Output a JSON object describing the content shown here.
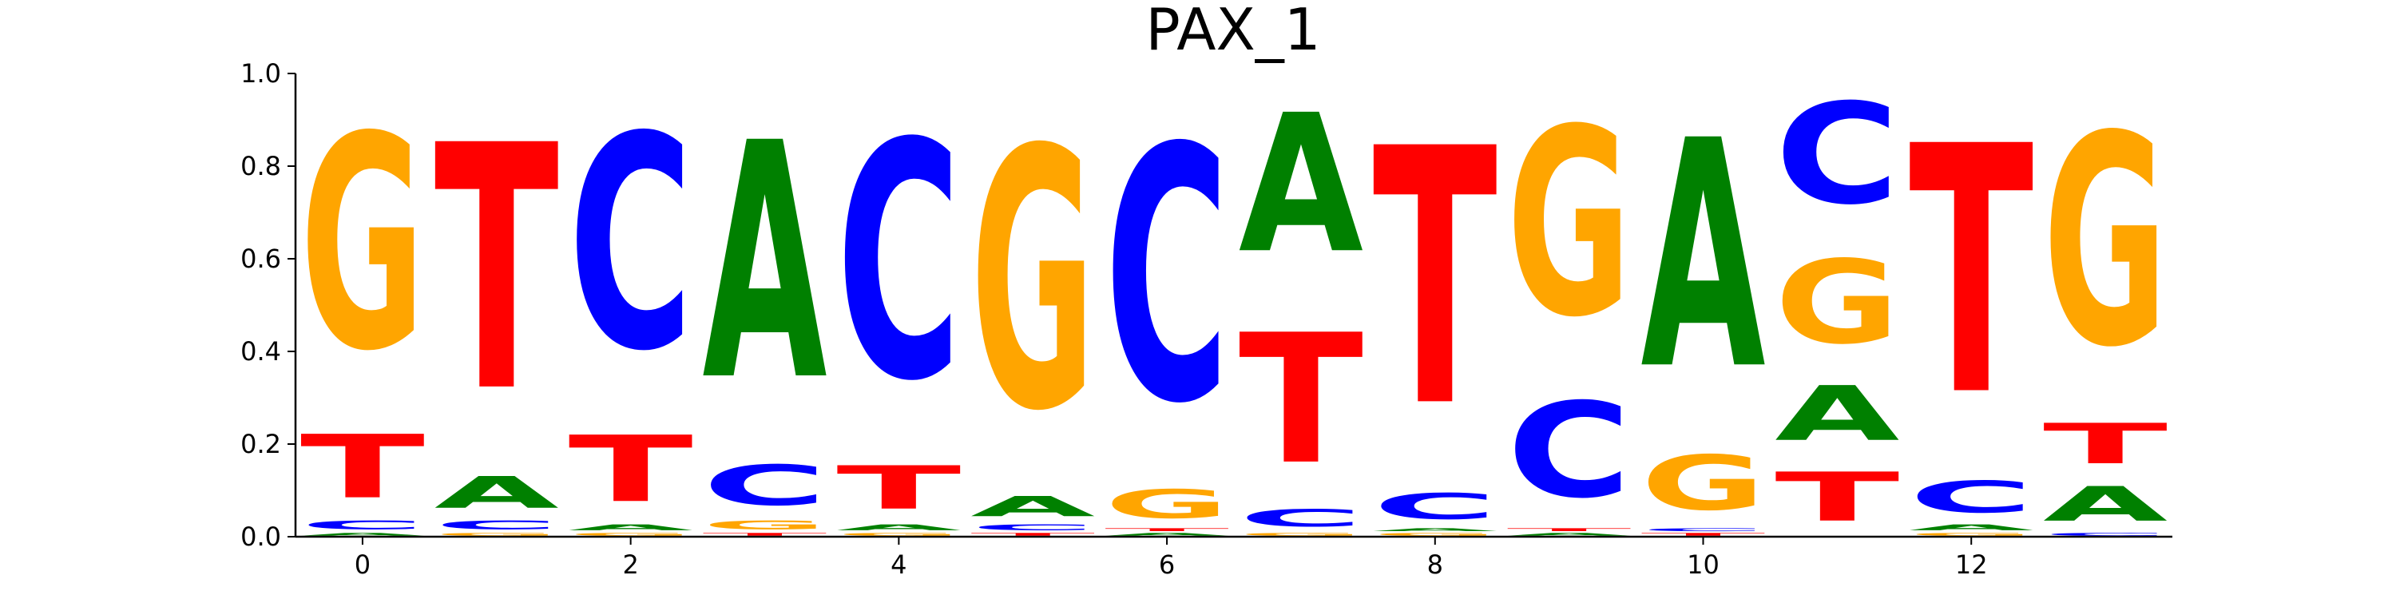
{
  "chart_data": {
    "type": "sequence-logo",
    "title": "PAX_1",
    "xlabel": "",
    "ylabel": "",
    "ylim": [
      0.0,
      1.0
    ],
    "xlim": [
      -0.5,
      13.5
    ],
    "x_ticks": [
      0,
      2,
      4,
      6,
      8,
      10,
      12
    ],
    "y_ticks": [
      0.0,
      0.2,
      0.4,
      0.6,
      0.8,
      1.0
    ],
    "x_tick_labels": [
      "0",
      "2",
      "4",
      "6",
      "8",
      "10",
      "12"
    ],
    "y_tick_labels": [
      "0.0",
      "0.2",
      "0.4",
      "0.6",
      "0.8",
      "1.0"
    ],
    "grid": false,
    "colors": {
      "A": "#008000",
      "C": "#0000ff",
      "G": "#ffa500",
      "T": "#ff0000"
    },
    "positions": [
      {
        "x": 0,
        "stack": [
          {
            "letter": "A",
            "value": 0.01
          },
          {
            "letter": "C",
            "value": 0.03
          },
          {
            "letter": "T",
            "value": 0.22
          },
          {
            "letter": "G",
            "value": 0.74
          }
        ]
      },
      {
        "x": 1,
        "stack": [
          {
            "letter": "G",
            "value": 0.01
          },
          {
            "letter": "C",
            "value": 0.03
          },
          {
            "letter": "A",
            "value": 0.11
          },
          {
            "letter": "T",
            "value": 0.85
          }
        ]
      },
      {
        "x": 2,
        "stack": [
          {
            "letter": "G",
            "value": 0.01
          },
          {
            "letter": "A",
            "value": 0.02
          },
          {
            "letter": "T",
            "value": 0.23
          },
          {
            "letter": "C",
            "value": 0.74
          }
        ]
      },
      {
        "x": 3,
        "stack": [
          {
            "letter": "T",
            "value": 0.01
          },
          {
            "letter": "G",
            "value": 0.03
          },
          {
            "letter": "C",
            "value": 0.14
          },
          {
            "letter": "A",
            "value": 0.82
          }
        ]
      },
      {
        "x": 4,
        "stack": [
          {
            "letter": "G",
            "value": 0.01
          },
          {
            "letter": "A",
            "value": 0.02
          },
          {
            "letter": "T",
            "value": 0.15
          },
          {
            "letter": "C",
            "value": 0.82
          }
        ]
      },
      {
        "x": 5,
        "stack": [
          {
            "letter": "T",
            "value": 0.01
          },
          {
            "letter": "C",
            "value": 0.02
          },
          {
            "letter": "A",
            "value": 0.07
          },
          {
            "letter": "G",
            "value": 0.9
          }
        ]
      },
      {
        "x": 6,
        "stack": [
          {
            "letter": "A",
            "value": 0.01
          },
          {
            "letter": "T",
            "value": 0.01
          },
          {
            "letter": "G",
            "value": 0.1
          },
          {
            "letter": "C",
            "value": 0.88
          }
        ]
      },
      {
        "x": 7,
        "stack": [
          {
            "letter": "G",
            "value": 0.01
          },
          {
            "letter": "C",
            "value": 0.06
          },
          {
            "letter": "T",
            "value": 0.45
          },
          {
            "letter": "A",
            "value": 0.48
          }
        ]
      },
      {
        "x": 8,
        "stack": [
          {
            "letter": "G",
            "value": 0.01
          },
          {
            "letter": "A",
            "value": 0.01
          },
          {
            "letter": "C",
            "value": 0.09
          },
          {
            "letter": "T",
            "value": 0.89
          }
        ]
      },
      {
        "x": 9,
        "stack": [
          {
            "letter": "A",
            "value": 0.01
          },
          {
            "letter": "T",
            "value": 0.01
          },
          {
            "letter": "C",
            "value": 0.33
          },
          {
            "letter": "G",
            "value": 0.65
          }
        ]
      },
      {
        "x": 10,
        "stack": [
          {
            "letter": "T",
            "value": 0.01
          },
          {
            "letter": "C",
            "value": 0.01
          },
          {
            "letter": "G",
            "value": 0.19
          },
          {
            "letter": "A",
            "value": 0.79
          }
        ]
      },
      {
        "x": 11,
        "stack": [
          {
            "letter": "T",
            "value": 0.17
          },
          {
            "letter": "A",
            "value": 0.19
          },
          {
            "letter": "G",
            "value": 0.29
          },
          {
            "letter": "C",
            "value": 0.35
          }
        ]
      },
      {
        "x": 12,
        "stack": [
          {
            "letter": "G",
            "value": 0.01
          },
          {
            "letter": "A",
            "value": 0.02
          },
          {
            "letter": "C",
            "value": 0.11
          },
          {
            "letter": "T",
            "value": 0.86
          }
        ]
      },
      {
        "x": 13,
        "stack": [
          {
            "letter": "C",
            "value": 0.01
          },
          {
            "letter": "A",
            "value": 0.12
          },
          {
            "letter": "T",
            "value": 0.14
          },
          {
            "letter": "G",
            "value": 0.73
          }
        ]
      }
    ]
  }
}
